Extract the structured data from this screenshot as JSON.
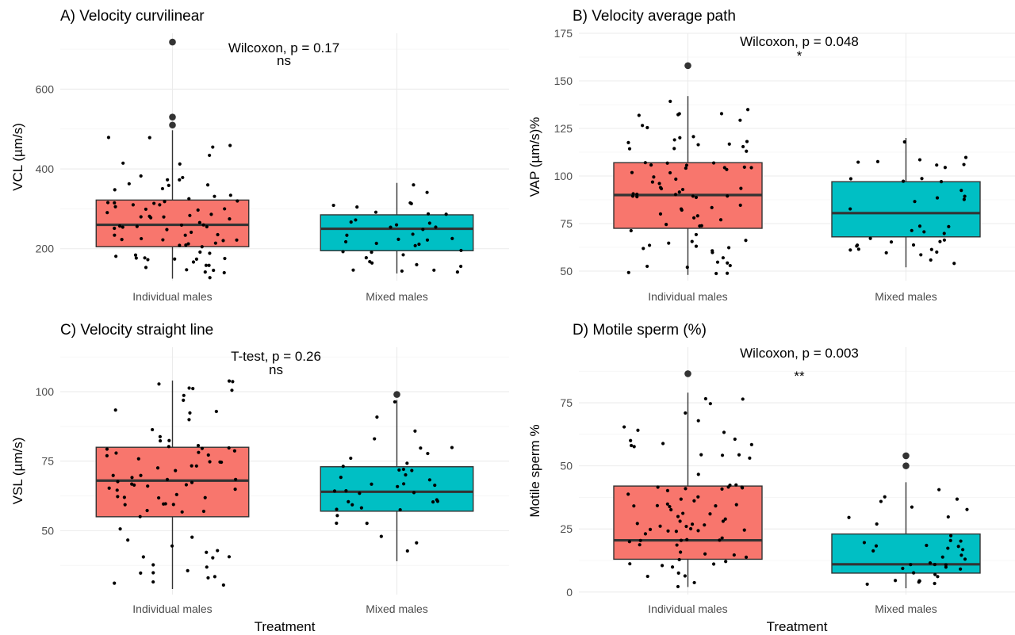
{
  "chart_data": [
    {
      "type": "box",
      "title": "A) Velocity curvilinear",
      "xlabel": "",
      "ylabel": "VCL (µm/s)",
      "ylim": [
        120,
        740
      ],
      "yticks": [
        200,
        400,
        600
      ],
      "categories": [
        "Individual males",
        "Mixed males"
      ],
      "boxes": [
        {
          "category": "Individual males",
          "fill": "#F8766D",
          "q1": 205,
          "median": 260,
          "q3": 322,
          "whisker_low": 125,
          "whisker_high": 497,
          "outliers": [
            510,
            530,
            718
          ]
        },
        {
          "category": "Mixed males",
          "fill": "#00BFC4",
          "q1": 195,
          "median": 250,
          "q3": 285,
          "whisker_low": 138,
          "whisker_high": 365,
          "outliers": []
        }
      ],
      "annotations": [
        "Wilcoxon, p = 0.17",
        "ns"
      ]
    },
    {
      "type": "box",
      "title": "B) Velocity average path",
      "xlabel": "",
      "ylabel": "VAP (µm/s)%",
      "ylim": [
        45,
        175
      ],
      "yticks": [
        50,
        75,
        100,
        125,
        150,
        175
      ],
      "categories": [
        "Individual males",
        "Mixed males"
      ],
      "boxes": [
        {
          "category": "Individual males",
          "fill": "#F8766D",
          "q1": 72.5,
          "median": 90,
          "q3": 107,
          "whisker_low": 48,
          "whisker_high": 142,
          "outliers": [
            158
          ]
        },
        {
          "category": "Mixed males",
          "fill": "#00BFC4",
          "q1": 68,
          "median": 80.5,
          "q3": 97,
          "whisker_low": 52,
          "whisker_high": 120,
          "outliers": []
        }
      ],
      "annotations": [
        "Wilcoxon, p = 0.048",
        "*"
      ]
    },
    {
      "type": "box",
      "title": "C) Velocity straight line",
      "xlabel": "Treatment",
      "ylabel": "VSL (µm/s)",
      "ylim": [
        27,
        116
      ],
      "yticks": [
        50,
        75,
        100
      ],
      "categories": [
        "Individual males",
        "Mixed males"
      ],
      "boxes": [
        {
          "category": "Individual males",
          "fill": "#F8766D",
          "q1": 55,
          "median": 68,
          "q3": 80,
          "whisker_low": 29,
          "whisker_high": 104,
          "outliers": []
        },
        {
          "category": "Mixed males",
          "fill": "#00BFC4",
          "q1": 57,
          "median": 64,
          "q3": 73,
          "whisker_low": 39,
          "whisker_high": 97,
          "outliers": [
            99
          ]
        }
      ],
      "annotations": [
        "T-test, p = 0.26",
        "ns"
      ]
    },
    {
      "type": "box",
      "title": "D) Motile sperm (%)",
      "xlabel": "Treatment",
      "ylabel": "Motile sperm %",
      "ylim": [
        -1,
        97
      ],
      "yticks": [
        0,
        25,
        50,
        75
      ],
      "categories": [
        "Individual males",
        "Mixed males"
      ],
      "boxes": [
        {
          "category": "Individual males",
          "fill": "#F8766D",
          "q1": 13,
          "median": 20.5,
          "q3": 42,
          "whisker_low": 2,
          "whisker_high": 79,
          "outliers": [
            86.5
          ]
        },
        {
          "category": "Mixed males",
          "fill": "#00BFC4",
          "q1": 7.5,
          "median": 11,
          "q3": 23,
          "whisker_low": 1.5,
          "whisker_high": 43.5,
          "outliers": [
            50,
            54
          ]
        }
      ],
      "annotations": [
        "Wilcoxon, p = 0.003",
        "**"
      ]
    }
  ]
}
